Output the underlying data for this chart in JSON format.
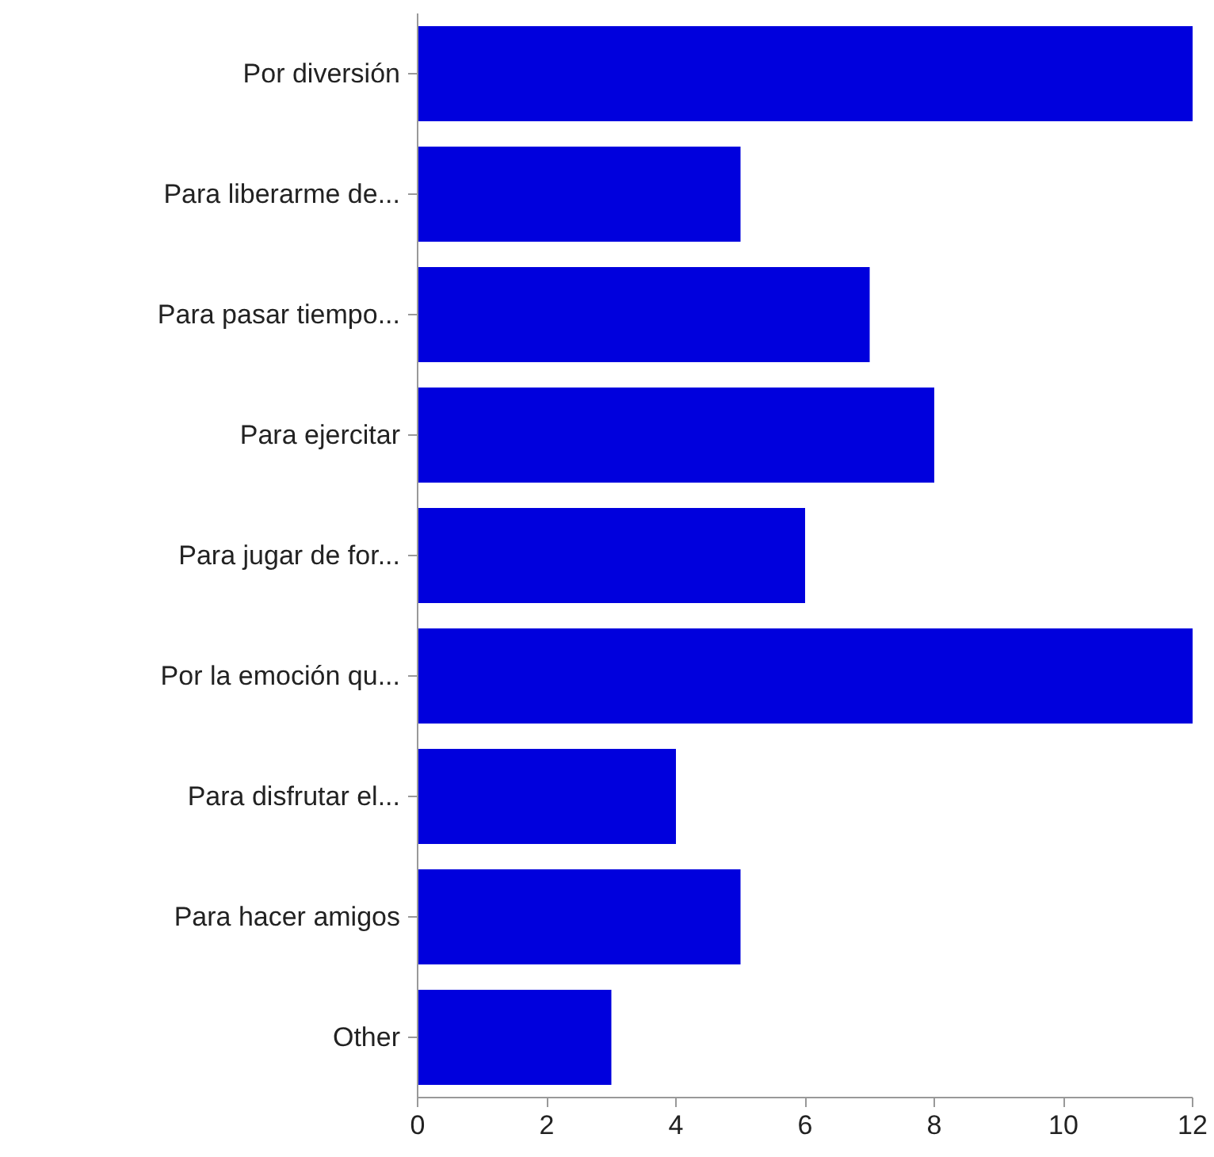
{
  "chart_data": {
    "type": "bar",
    "orientation": "horizontal",
    "categories": [
      "Por diversión",
      "Para liberarme de...",
      "Para pasar tiempo...",
      "Para ejercitar",
      "Para jugar de for...",
      "Por la emoción qu...",
      "Para disfrutar el...",
      "Para hacer amigos",
      "Other"
    ],
    "values": [
      12,
      5,
      7,
      8,
      6,
      12,
      4,
      5,
      3
    ],
    "color": "#0000dd",
    "xlim": [
      0,
      12
    ],
    "xticks": [
      0,
      2,
      4,
      6,
      8,
      10,
      12
    ],
    "grid": false
  }
}
